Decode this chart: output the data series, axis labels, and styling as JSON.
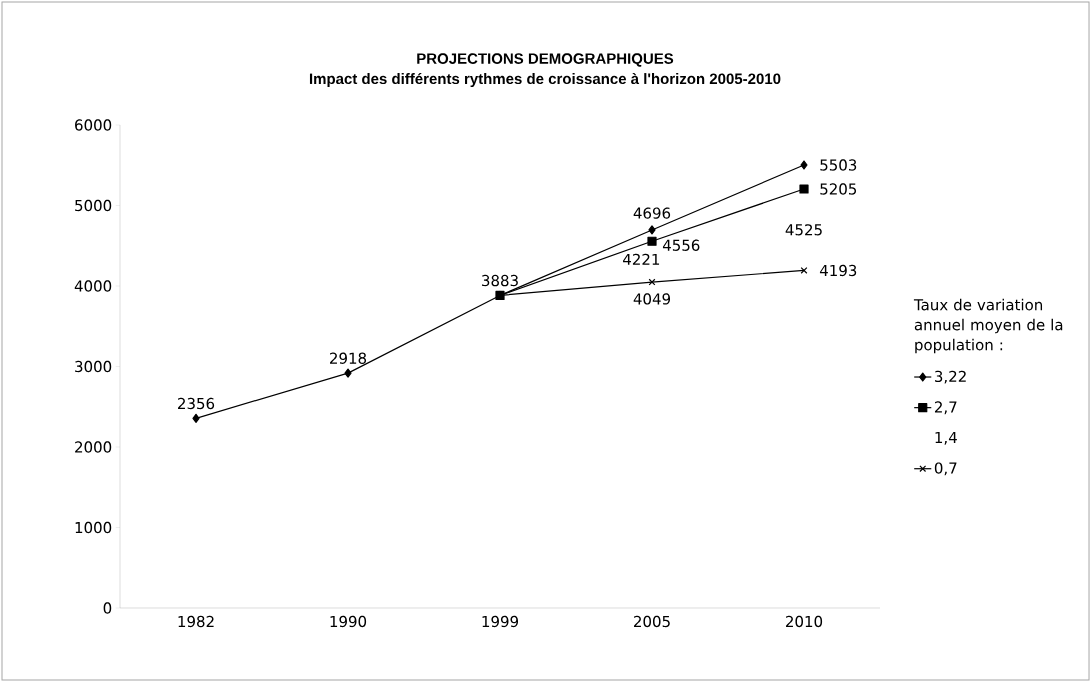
{
  "chart_data": {
    "type": "line",
    "title": "PROJECTIONS DEMOGRAPHIQUES",
    "subtitle": "Impact des différents rythmes de croissance à l'horizon 2005-2010",
    "categories": [
      "1982",
      "1990",
      "1999",
      "2005",
      "2010"
    ],
    "series": [
      {
        "name": "3,22",
        "color": "#000000",
        "marker": "diamond",
        "values": [
          2356,
          2918,
          3883,
          4696,
          5503
        ],
        "value_labels": [
          "2356",
          "2918",
          "3883",
          "4696",
          "5503"
        ]
      },
      {
        "name": "2,7",
        "color": "#000000",
        "marker": "square",
        "values": [
          null,
          null,
          3883,
          4556,
          5205
        ],
        "value_labels": [
          null,
          null,
          null,
          "4556",
          "5205"
        ]
      },
      {
        "name": "0,7",
        "color": "#000000",
        "marker": "cross",
        "values": [
          null,
          null,
          3883,
          4049,
          4193
        ],
        "value_labels": [
          null,
          null,
          null,
          "4049",
          "4193"
        ]
      }
    ],
    "annotations": [
      "4221",
      "4525",
      "1,4"
    ],
    "ylim": [
      0,
      6000
    ],
    "yticks": [
      0,
      1000,
      2000,
      3000,
      4000,
      5000,
      6000
    ],
    "legend": "right",
    "legend_title": "Taux de variation annuel moyen de la population :",
    "grid": false
  }
}
